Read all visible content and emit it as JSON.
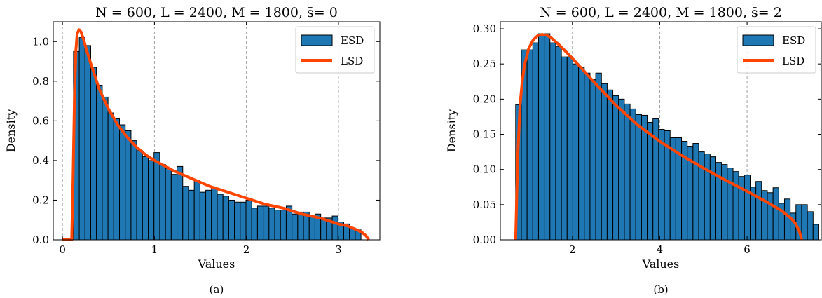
{
  "chart_data": [
    {
      "type": "bar",
      "title": "N = 600, L = 2400, M = 1800, s̄= 0",
      "xlabel": "Values",
      "ylabel": "Density",
      "subcaption": "(a)",
      "xlim": [
        -0.1,
        3.45
      ],
      "ylim": [
        0,
        1.1
      ],
      "xticks": [
        0,
        1,
        2,
        3
      ],
      "xtick_labels": [
        "0",
        "1",
        "2",
        "3"
      ],
      "yticks": [
        0,
        0.2,
        0.4,
        0.6,
        0.8,
        1.0
      ],
      "ytick_labels": [
        "0.0",
        "0.2",
        "0.4",
        "0.6",
        "0.8",
        "1.0"
      ],
      "grid": "vertical dashed at x ticks",
      "legend": {
        "position": "top-right",
        "entries": [
          "ESD",
          "LSD"
        ]
      },
      "colors": {
        "bars": "#1f77b4",
        "curve": "#ff4500"
      },
      "series": [
        {
          "name": "ESD",
          "kind": "histogram",
          "bin_start": 0.12,
          "bin_width": 0.0625,
          "values": [
            0.95,
            1.02,
            0.98,
            0.87,
            0.78,
            0.72,
            0.64,
            0.61,
            0.58,
            0.55,
            0.5,
            0.45,
            0.42,
            0.4,
            0.44,
            0.38,
            0.36,
            0.33,
            0.37,
            0.27,
            0.25,
            0.3,
            0.24,
            0.25,
            0.26,
            0.23,
            0.22,
            0.2,
            0.19,
            0.19,
            0.2,
            0.16,
            0.17,
            0.17,
            0.16,
            0.15,
            0.15,
            0.17,
            0.13,
            0.14,
            0.14,
            0.12,
            0.13,
            0.11,
            0.11,
            0.12,
            0.09,
            0.08,
            0.06,
            0.05
          ]
        },
        {
          "name": "LSD",
          "kind": "line",
          "x": [
            0.0,
            0.1,
            0.115,
            0.13,
            0.145,
            0.16,
            0.18,
            0.2,
            0.23,
            0.26,
            0.3,
            0.35,
            0.4,
            0.5,
            0.6,
            0.7,
            0.8,
            0.9,
            1.0,
            1.2,
            1.4,
            1.6,
            1.8,
            2.0,
            2.2,
            2.4,
            2.6,
            2.8,
            3.0,
            3.1,
            3.2,
            3.25,
            3.3,
            3.33
          ],
          "y": [
            0.0,
            0.0,
            0.3,
            0.7,
            0.95,
            1.04,
            1.06,
            1.05,
            1.01,
            0.96,
            0.9,
            0.83,
            0.76,
            0.66,
            0.58,
            0.52,
            0.47,
            0.43,
            0.4,
            0.35,
            0.31,
            0.27,
            0.24,
            0.21,
            0.18,
            0.16,
            0.13,
            0.11,
            0.08,
            0.07,
            0.05,
            0.04,
            0.02,
            0.0
          ]
        }
      ]
    },
    {
      "type": "bar",
      "title": "N = 600, L = 2400, M = 1800, s̄= 2",
      "xlabel": "Values",
      "ylabel": "Density",
      "subcaption": "(b)",
      "xlim": [
        0.35,
        7.7
      ],
      "ylim": [
        0,
        0.31
      ],
      "xticks": [
        2,
        4,
        6
      ],
      "xtick_labels": [
        "2",
        "4",
        "6"
      ],
      "yticks": [
        0,
        0.05,
        0.1,
        0.15,
        0.2,
        0.25,
        0.3
      ],
      "ytick_labels": [
        "0.00",
        "0.05",
        "0.10",
        "0.15",
        "0.20",
        "0.25",
        "0.30"
      ],
      "grid": "vertical dashed at x ticks",
      "legend": {
        "position": "top-right",
        "entries": [
          "ESD",
          "LSD"
        ]
      },
      "colors": {
        "bars": "#1f77b4",
        "curve": "#ff4500"
      },
      "series": [
        {
          "name": "ESD",
          "kind": "histogram",
          "bin_start": 0.7,
          "bin_width": 0.131,
          "values": [
            0.192,
            0.27,
            0.27,
            0.28,
            0.293,
            0.293,
            0.28,
            0.275,
            0.26,
            0.26,
            0.25,
            0.245,
            0.237,
            0.228,
            0.237,
            0.222,
            0.213,
            0.205,
            0.2,
            0.193,
            0.186,
            0.178,
            0.177,
            0.167,
            0.172,
            0.157,
            0.155,
            0.145,
            0.145,
            0.14,
            0.133,
            0.137,
            0.125,
            0.122,
            0.118,
            0.11,
            0.107,
            0.102,
            0.097,
            0.09,
            0.092,
            0.075,
            0.083,
            0.07,
            0.067,
            0.074,
            0.052,
            0.058,
            0.038,
            0.05,
            0.05,
            0.04,
            0.022
          ]
        },
        {
          "name": "LSD",
          "kind": "line",
          "x": [
            0.7,
            0.75,
            0.8,
            0.85,
            0.9,
            1.0,
            1.1,
            1.2,
            1.3,
            1.4,
            1.5,
            1.7,
            2.0,
            2.5,
            3.0,
            3.5,
            4.0,
            4.5,
            5.0,
            5.5,
            6.0,
            6.5,
            6.8,
            7.0,
            7.1,
            7.2,
            7.25
          ],
          "y": [
            0.0,
            0.12,
            0.19,
            0.225,
            0.248,
            0.272,
            0.284,
            0.29,
            0.292,
            0.291,
            0.288,
            0.277,
            0.258,
            0.224,
            0.191,
            0.163,
            0.14,
            0.12,
            0.102,
            0.085,
            0.069,
            0.052,
            0.041,
            0.031,
            0.024,
            0.012,
            0.0
          ]
        }
      ]
    }
  ]
}
